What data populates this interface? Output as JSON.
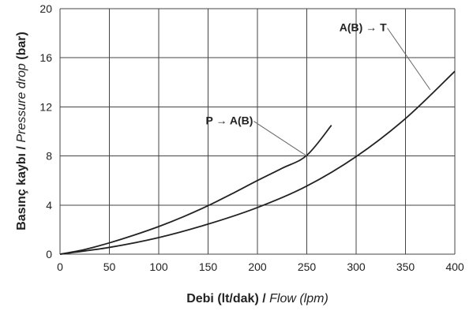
{
  "chart_data": {
    "type": "line",
    "xlabel": {
      "main": "Debi (lt/dak) / ",
      "italic": "Flow (lpm)"
    },
    "ylabel": {
      "main": "Basınç kaybı / ",
      "italic": "Pressure drop",
      "suffix": " (bar)"
    },
    "xlim": [
      0,
      400
    ],
    "ylim": [
      0,
      20
    ],
    "xticks": [
      0,
      50,
      100,
      150,
      200,
      250,
      300,
      350,
      400
    ],
    "yticks": [
      0,
      4,
      8,
      12,
      16,
      20
    ],
    "grid": true,
    "series": [
      {
        "name": "P → A(B)",
        "x": [
          0,
          25,
          50,
          75,
          100,
          125,
          150,
          175,
          200,
          225,
          250,
          275
        ],
        "y": [
          0.0,
          0.38,
          0.92,
          1.55,
          2.25,
          3.05,
          3.95,
          4.95,
          6.0,
          7.0,
          8.05,
          10.5
        ]
      },
      {
        "name": "A(B) → T",
        "x": [
          0,
          50,
          100,
          150,
          200,
          250,
          300,
          350,
          400
        ],
        "y": [
          0.0,
          0.55,
          1.35,
          2.45,
          3.8,
          5.55,
          7.95,
          11.05,
          14.9
        ]
      }
    ],
    "annotations": [
      {
        "text": "P → A(B)",
        "series_index": 0,
        "at_x": 250,
        "at_y": 8.0
      },
      {
        "text": "A(B) → T",
        "series_index": 1,
        "at_x": 375,
        "at_y": 13.4
      }
    ]
  }
}
